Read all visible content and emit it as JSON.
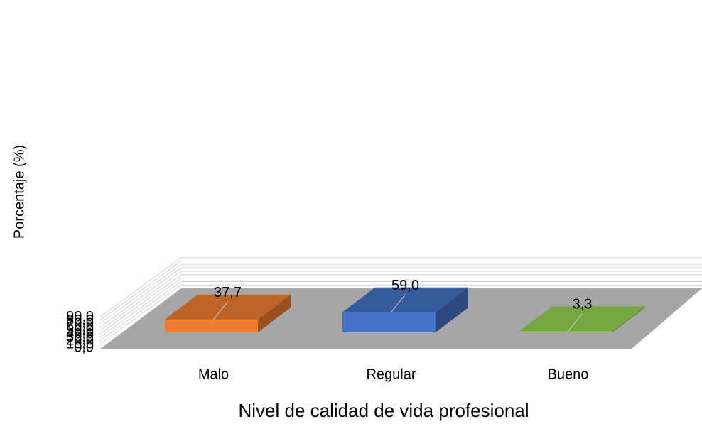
{
  "chart_data": {
    "type": "bar3d",
    "xlabel": "Nivel de calidad de vida profesional",
    "ylabel": "Porcentaje (%)",
    "categories": [
      "Malo",
      "Regular",
      "Bueno"
    ],
    "values": [
      37.7,
      59.0,
      3.3
    ],
    "value_labels": [
      "37,7",
      "59,0",
      "3,3"
    ],
    "colors": [
      "#ED7D31",
      "#4472C4",
      "#92D050"
    ],
    "ylim": [
      0,
      90
    ],
    "yticks": [
      {
        "value": 0,
        "label": "0,0"
      },
      {
        "value": 10,
        "label": "10,0"
      },
      {
        "value": 20,
        "label": "20,0"
      },
      {
        "value": 30,
        "label": "30,0"
      },
      {
        "value": 40,
        "label": "40,0"
      },
      {
        "value": 50,
        "label": "50,0"
      },
      {
        "value": 60,
        "label": "60,0"
      },
      {
        "value": 70,
        "label": "70,0"
      },
      {
        "value": 80,
        "label": "80,0"
      },
      {
        "value": 90,
        "label": "90,0"
      }
    ],
    "grid": true
  }
}
